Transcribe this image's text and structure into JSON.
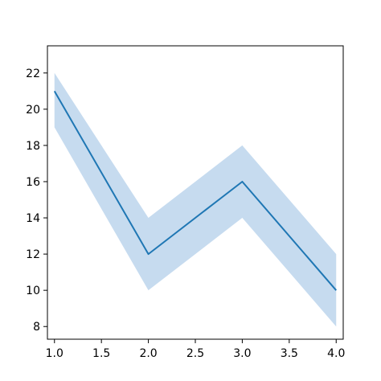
{
  "chart_data": {
    "type": "line",
    "title": "",
    "xlabel": "",
    "ylabel": "",
    "x": [
      1.0,
      2.0,
      3.0,
      4.0
    ],
    "series": [
      {
        "values": [
          21,
          12,
          16,
          10
        ],
        "band_lower": [
          19,
          10,
          14,
          8
        ],
        "band_upper": [
          22,
          14,
          18,
          12
        ],
        "color": "#1f77b4",
        "band_color": "#c6dbef"
      }
    ],
    "xlim": [
      0.925,
      4.075
    ],
    "ylim": [
      7.3,
      23.5
    ],
    "xticks": [
      1.0,
      1.5,
      2.0,
      2.5,
      3.0,
      3.5,
      4.0
    ],
    "xtick_labels": [
      "1.0",
      "1.5",
      "2.0",
      "2.5",
      "3.0",
      "3.5",
      "4.0"
    ],
    "yticks": [
      8,
      10,
      12,
      14,
      16,
      18,
      20,
      22
    ],
    "ytick_labels": [
      "8",
      "10",
      "12",
      "14",
      "16",
      "18",
      "20",
      "22"
    ],
    "grid": false,
    "legend": "none"
  }
}
